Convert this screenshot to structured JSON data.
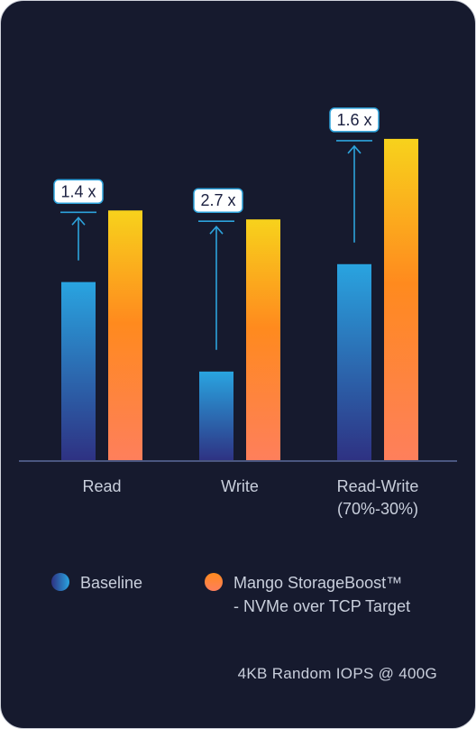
{
  "chart_data": {
    "type": "bar",
    "title": "",
    "xlabel": "",
    "ylabel": "",
    "categories": [
      "Read",
      "Write",
      "Read-Write"
    ],
    "category_sublabels": [
      "",
      "",
      "(70%-30%)"
    ],
    "series": [
      {
        "name": "Baseline",
        "values": [
          1.0,
          0.5,
          1.1
        ]
      },
      {
        "name": "Mango StorageBoost™ - NVMe over TCP Target",
        "values": [
          1.4,
          1.35,
          1.8
        ]
      }
    ],
    "ratio_labels": [
      "1.4 x",
      "2.7 x",
      "1.6 x"
    ],
    "ylim": [
      0,
      1.85
    ],
    "grid": false,
    "legend_position": "bottom"
  },
  "legend": {
    "baseline": "Baseline",
    "storageboost_line1": "Mango StorageBoost™",
    "storageboost_line2": "- NVMe over TCP Target"
  },
  "footnote": "4KB Random IOPS @ 400G",
  "colors": {
    "background": "#161a2e",
    "baseline_top": "#29a4e0",
    "baseline_bottom": "#2e3182",
    "boost_top": "#f7d21c",
    "boost_mid": "#ff8a1e",
    "boost_bottom": "#fe7f5c",
    "axis": "#4a5680",
    "arrow": "#2da3dc",
    "text": "#c9cfdc"
  }
}
